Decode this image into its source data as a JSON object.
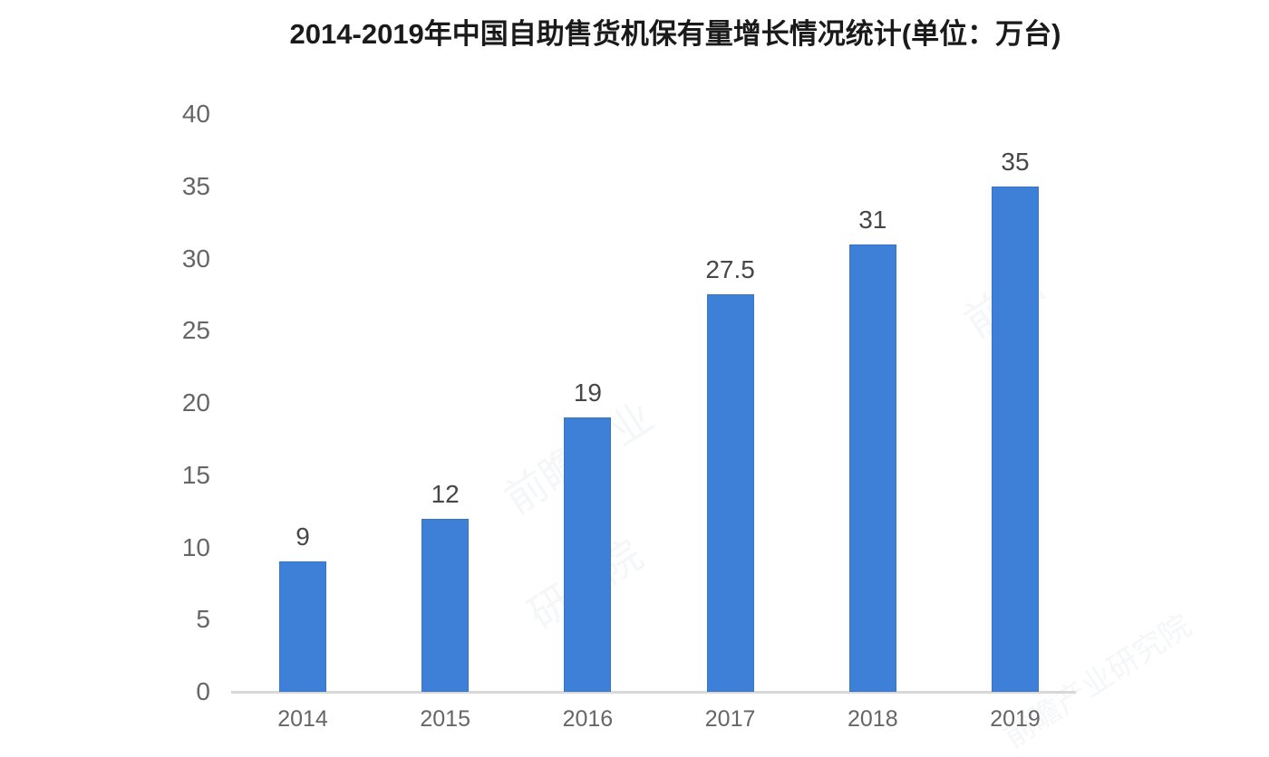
{
  "watermark": {
    "fragments": [
      "前瞻",
      "前瞻产业",
      "研究院",
      "前瞻产业研究院"
    ]
  },
  "chart_data": {
    "type": "bar",
    "title": "2014-2019年中国自助售货机保有量增长情况统计(单位：万台)",
    "categories": [
      "2014",
      "2015",
      "2016",
      "2017",
      "2018",
      "2019"
    ],
    "values": [
      9,
      12,
      19,
      27.5,
      31,
      35
    ],
    "value_labels": [
      "9",
      "12",
      "19",
      "27.5",
      "31",
      "35"
    ],
    "xlabel": "",
    "ylabel": "",
    "ylim": [
      0,
      40
    ],
    "yticks": [
      0,
      5,
      10,
      15,
      20,
      25,
      30,
      35,
      40
    ],
    "grid": false,
    "legend": null,
    "colors": {
      "bar_fill": "#3e7fd7",
      "bar_border": "#3a74c4",
      "axis_line": "#d8d8d8",
      "tick_label": "#666666",
      "value_label": "#474747",
      "title": "#1a1a1a",
      "background": "#ffffff"
    }
  }
}
